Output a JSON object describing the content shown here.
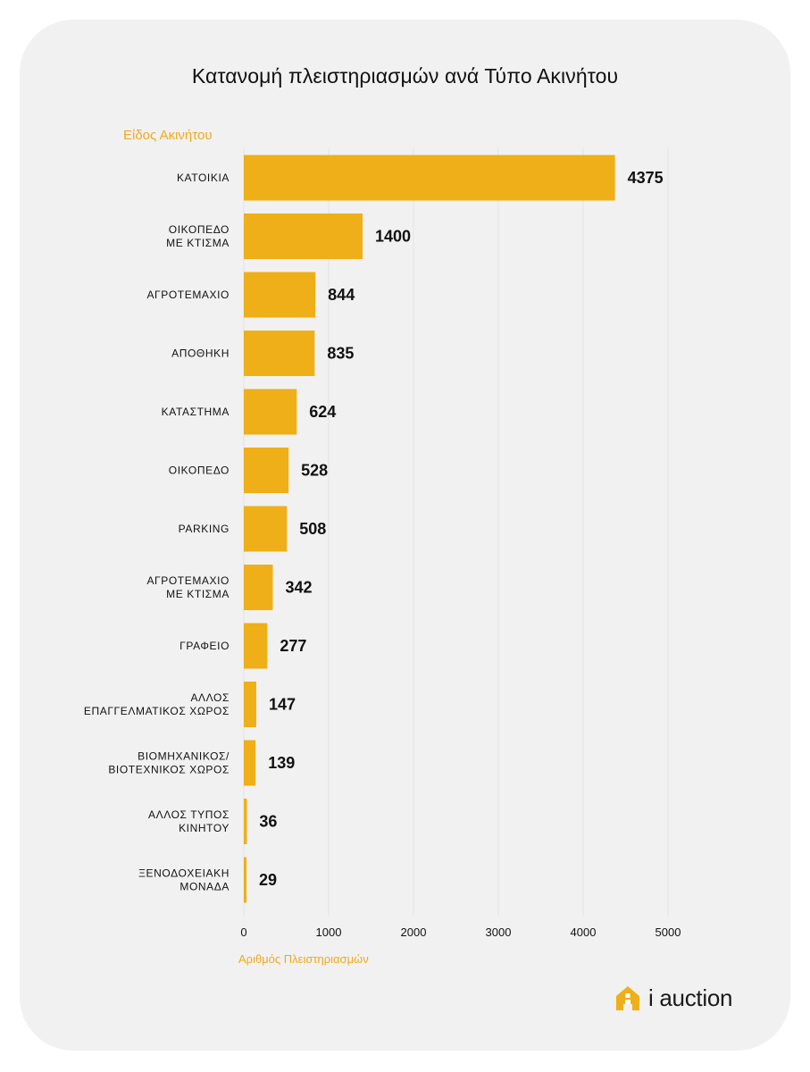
{
  "chart_data": {
    "type": "bar",
    "orientation": "horizontal",
    "title": "Κατανομή πλειστηριασμών ανά Τύπο Ακινήτου",
    "ylabel": "Είδος Ακινήτου",
    "xlabel": "Αριθμός Πλειστηριασμών",
    "categories": [
      [
        "ΚΑΤΟΙΚΙΑ"
      ],
      [
        "ΟΙΚΟΠΕΔΟ",
        "ΜΕ ΚΤΙΣΜΑ"
      ],
      [
        "ΑΓΡΟΤΕΜΑΧΙΟ"
      ],
      [
        "ΑΠΟΘΗΚΗ"
      ],
      [
        "ΚΑΤΑΣΤΗΜΑ"
      ],
      [
        "ΟΙΚΟΠΕΔΟ"
      ],
      [
        "PARKING"
      ],
      [
        "ΑΓΡΟΤΕΜΑΧΙΟ",
        "ΜΕ ΚΤΙΣΜΑ"
      ],
      [
        "ΓΡΑΦΕΙΟ"
      ],
      [
        "ΑΛΛΟΣ",
        "ΕΠΑΓΓΕΛΜΑΤΙΚΟΣ ΧΩΡΟΣ"
      ],
      [
        "ΒΙΟΜΗΧΑΝΙΚΟΣ/",
        "ΒΙΟΤΕΧΝΙΚΟΣ ΧΩΡΟΣ"
      ],
      [
        "ΑΛΛΟΣ ΤΥΠΟΣ",
        "ΚΙΝΗΤΟΥ"
      ],
      [
        "ΞΕΝΟΔΟΧΕΙΑΚΗ",
        "ΜΟΝΑΔΑ"
      ]
    ],
    "values": [
      4375,
      1400,
      844,
      835,
      624,
      528,
      508,
      342,
      277,
      147,
      139,
      36,
      29
    ],
    "xlim": [
      0,
      5000
    ],
    "xticks": [
      0,
      1000,
      2000,
      3000,
      4000,
      5000
    ],
    "grid": "vertical",
    "legend": "none",
    "colors": {
      "bar": "#efaf18",
      "accent_text": "#f0a91c",
      "grid": "#e2e2e2",
      "text": "#111111"
    }
  },
  "brand": {
    "name": "i auction",
    "icon": "house-logo-icon"
  }
}
